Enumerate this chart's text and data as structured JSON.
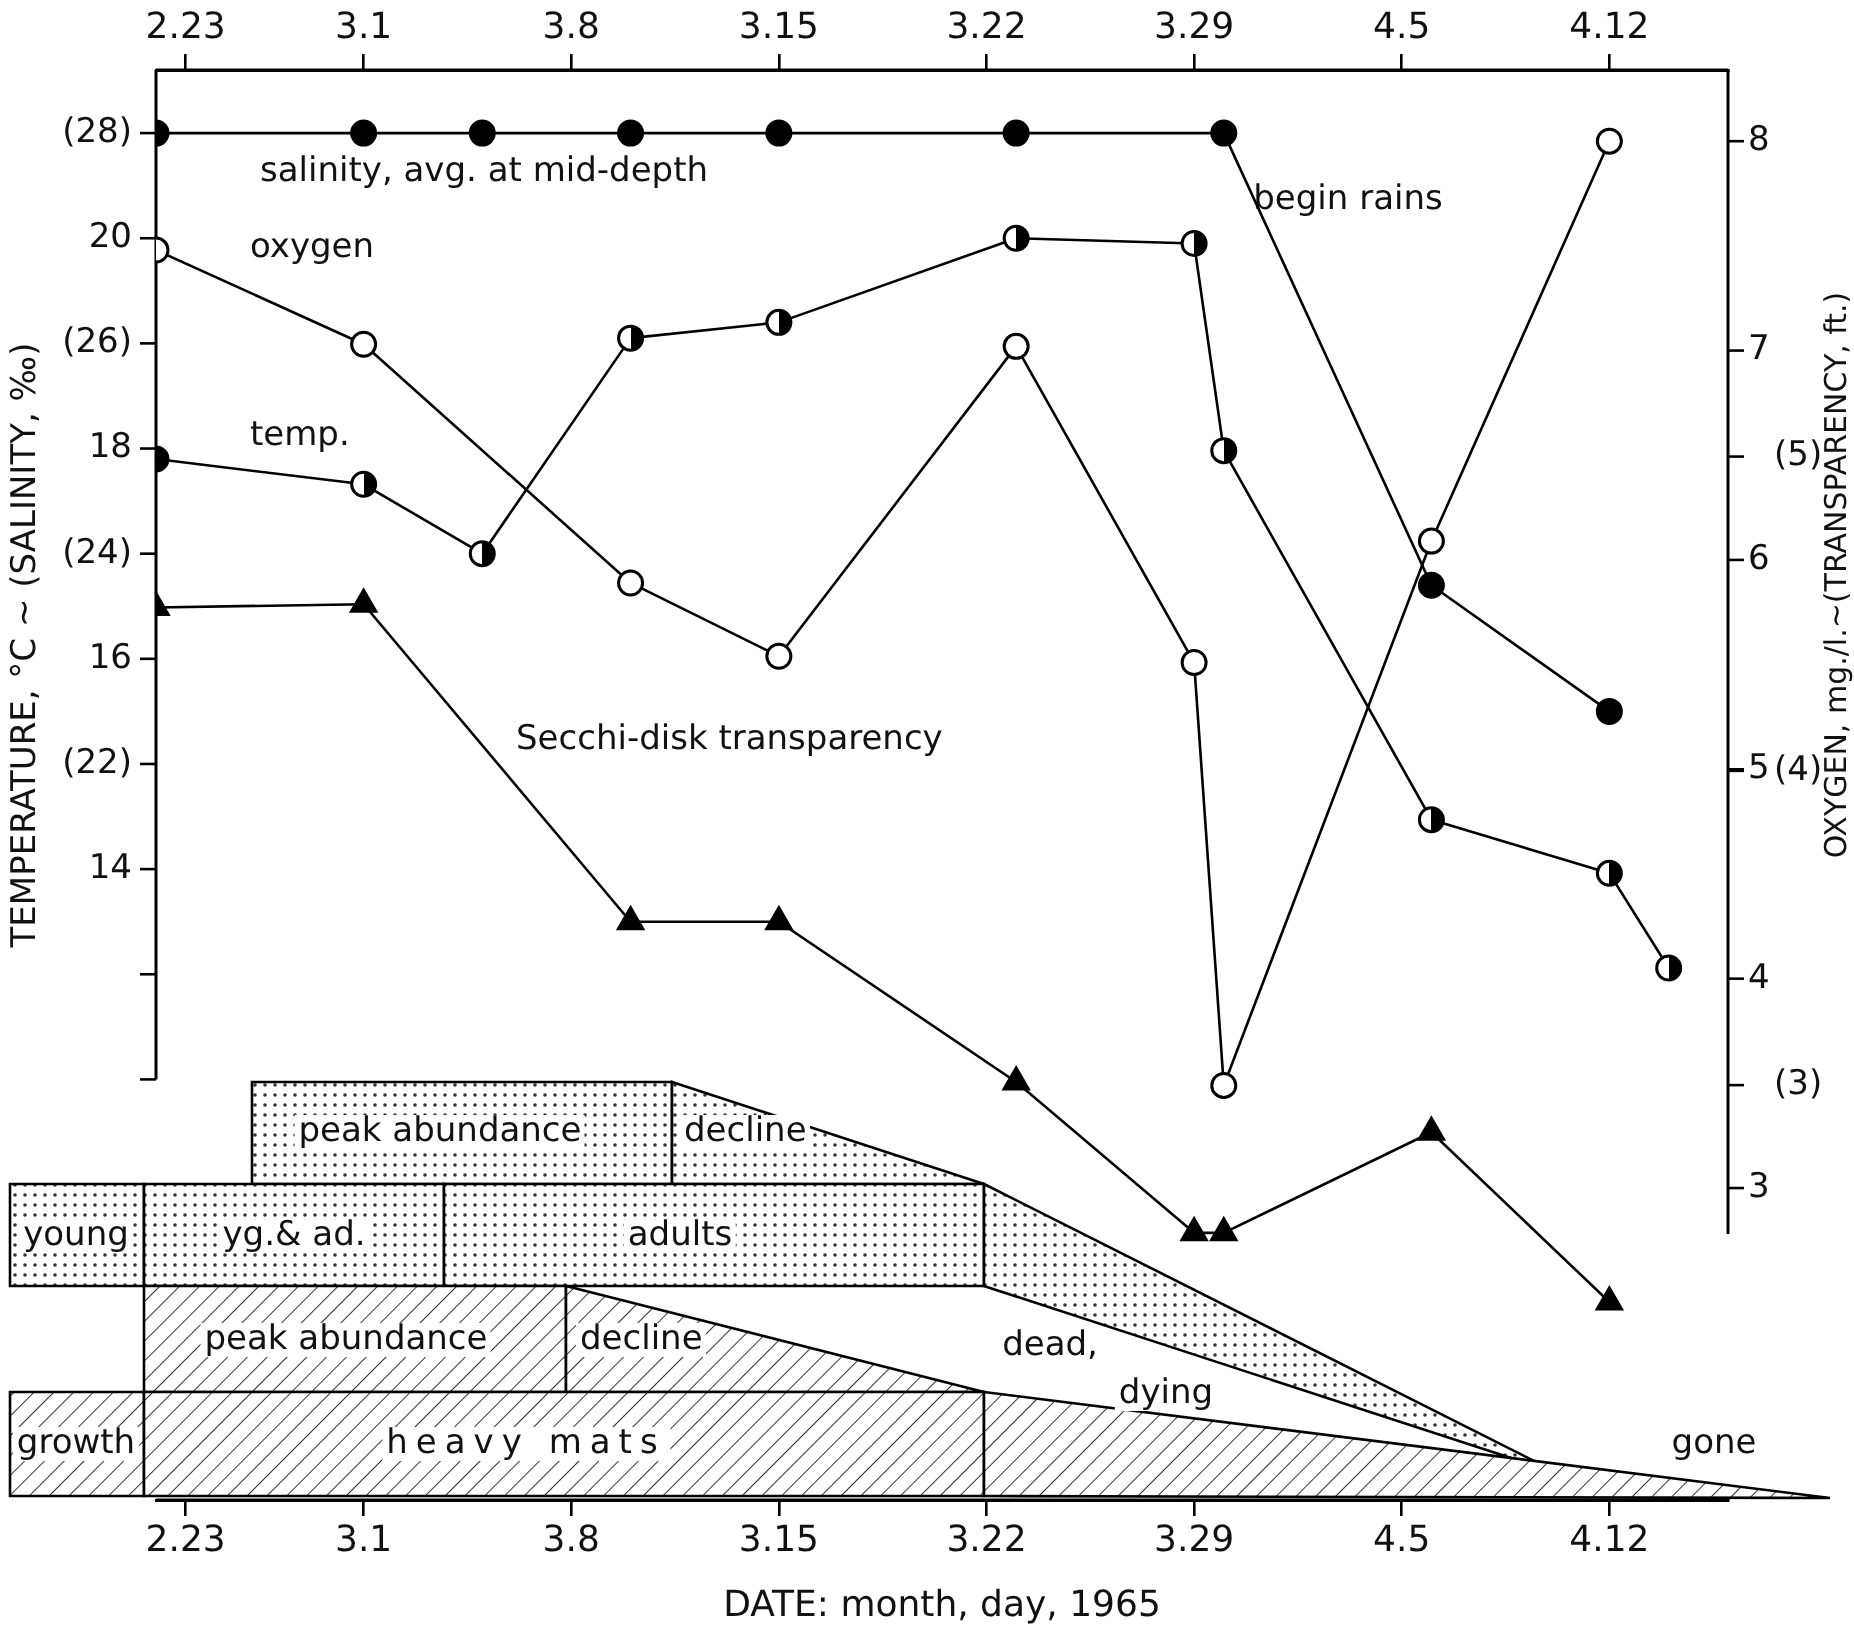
{
  "chart_data": [
    {
      "type": "line",
      "xlabel": "DATE: month, day, 1965",
      "ylabel": "TEMPERATURE, °C ~ (SALINITY, ‰)",
      "xlim": [
        "1965-02-22",
        "1965-04-16"
      ],
      "xticks": [
        {
          "value": "1965-02-23",
          "label": "2.23"
        },
        {
          "value": "1965-03-01",
          "label": "3.1"
        },
        {
          "value": "1965-03-08",
          "label": "3.8"
        },
        {
          "value": "1965-03-15",
          "label": "3.15"
        },
        {
          "value": "1965-03-22",
          "label": "3.22"
        },
        {
          "value": "1965-03-29",
          "label": "3.29"
        },
        {
          "value": "1965-04-05",
          "label": "4.5"
        },
        {
          "value": "1965-04-12",
          "label": "4.12"
        }
      ],
      "ylim": [
        15,
        28.6
      ],
      "yticks": [
        {
          "value": 28,
          "label": "(28)"
        },
        {
          "value": 26,
          "label": "(26)"
        },
        {
          "value": 24,
          "label": "(24)"
        },
        {
          "value": 22,
          "label": "(22)"
        },
        {
          "value": 20,
          "label": null
        }
      ],
      "y2lim": [
        8,
        21.6
      ],
      "y2ticks": [
        20,
        18,
        16,
        14,
        {
          "value": 12,
          "label": null
        }
      ],
      "series": [
        {
          "name": "salinity, avg. at mid-depth",
          "color": "#000000",
          "marker": "circle",
          "x": [
            "1965-02-22",
            "1965-03-01",
            "1965-03-05",
            "1965-03-10",
            "1965-03-15",
            "1965-03-23",
            "1965-03-30",
            "1965-04-06",
            "1965-04-12"
          ],
          "values": [
            28,
            28,
            28,
            28,
            28,
            28,
            28,
            23.7,
            22.5
          ]
        },
        {
          "name": "temp.",
          "color": "#000000",
          "axis": "y2",
          "marker": "circle",
          "x": [
            "1965-02-22",
            "1965-03-01",
            "1965-03-05",
            "1965-03-10",
            "1965-03-15",
            "1965-03-23",
            "1965-03-29",
            "1965-03-30",
            "1965-04-06",
            "1965-04-12",
            "1965-04-14"
          ],
          "values": [
            17.9,
            17.66,
            17.0,
            19.05,
            19.2,
            20.0,
            19.95,
            17.98,
            14.47,
            13.96,
            13.06
          ]
        }
      ],
      "annotations": [
        "begin rains",
        "peak abundance",
        "decline",
        "young",
        "yg.& ad.",
        "adults",
        "peak abundance",
        "decline",
        "growth",
        "heavy mats",
        "dead,",
        "dying",
        "gone"
      ]
    },
    {
      "type": "line",
      "y2label": "OXYGEN, mg./l.~(TRANSPARENCY, ft.)",
      "xlim": [
        "1965-02-22",
        "1965-04-16"
      ],
      "xticks": [
        {
          "value": "1965-02-23",
          "label": "2.23"
        },
        {
          "value": "1965-03-01",
          "label": "3.1"
        },
        {
          "value": "1965-03-08",
          "label": "3.8"
        },
        {
          "value": "1965-03-15",
          "label": "3.15"
        },
        {
          "value": "1965-03-22",
          "label": "3.22"
        },
        {
          "value": "1965-03-29",
          "label": "3.29"
        },
        {
          "value": "1965-04-05",
          "label": "4.5"
        },
        {
          "value": "1965-04-12",
          "label": "4.12"
        }
      ],
      "y2lim": [
        1.68,
        6.23
      ],
      "y2ticks": [
        {
          "value": 5,
          "label": "(5)"
        },
        {
          "value": 4,
          "label": "(4)"
        },
        {
          "value": 3,
          "label": "(3)"
        }
      ],
      "y3lim": [
        1.51,
        8.34
      ],
      "y3ticks": [
        8,
        7,
        6,
        5,
        4,
        3
      ],
      "series": [
        {
          "name": "oxygen",
          "color": "#000000",
          "axis": "y3",
          "marker": "circle",
          "x": [
            "1965-02-22",
            "1965-03-01",
            "1965-03-10",
            "1965-03-15",
            "1965-03-23",
            "1965-03-29",
            "1965-03-30",
            "1965-04-06",
            "1965-04-12"
          ],
          "values": [
            7.48,
            7.03,
            5.89,
            5.54,
            7.02,
            5.51,
            3.49,
            6.09,
            8.0
          ]
        },
        {
          "name": "Secchi-disk transparency",
          "color": "#000000",
          "axis": "y2",
          "marker": "triangle",
          "x": [
            "1965-02-22",
            "1965-03-01",
            "1965-03-10",
            "1965-03-15",
            "1965-03-23",
            "1965-03-29",
            "1965-03-30",
            "1965-04-06",
            "1965-04-12"
          ],
          "values": [
            4.52,
            4.53,
            3.52,
            3.52,
            3.01,
            2.53,
            2.53,
            2.85,
            2.31
          ]
        }
      ]
    }
  ]
}
